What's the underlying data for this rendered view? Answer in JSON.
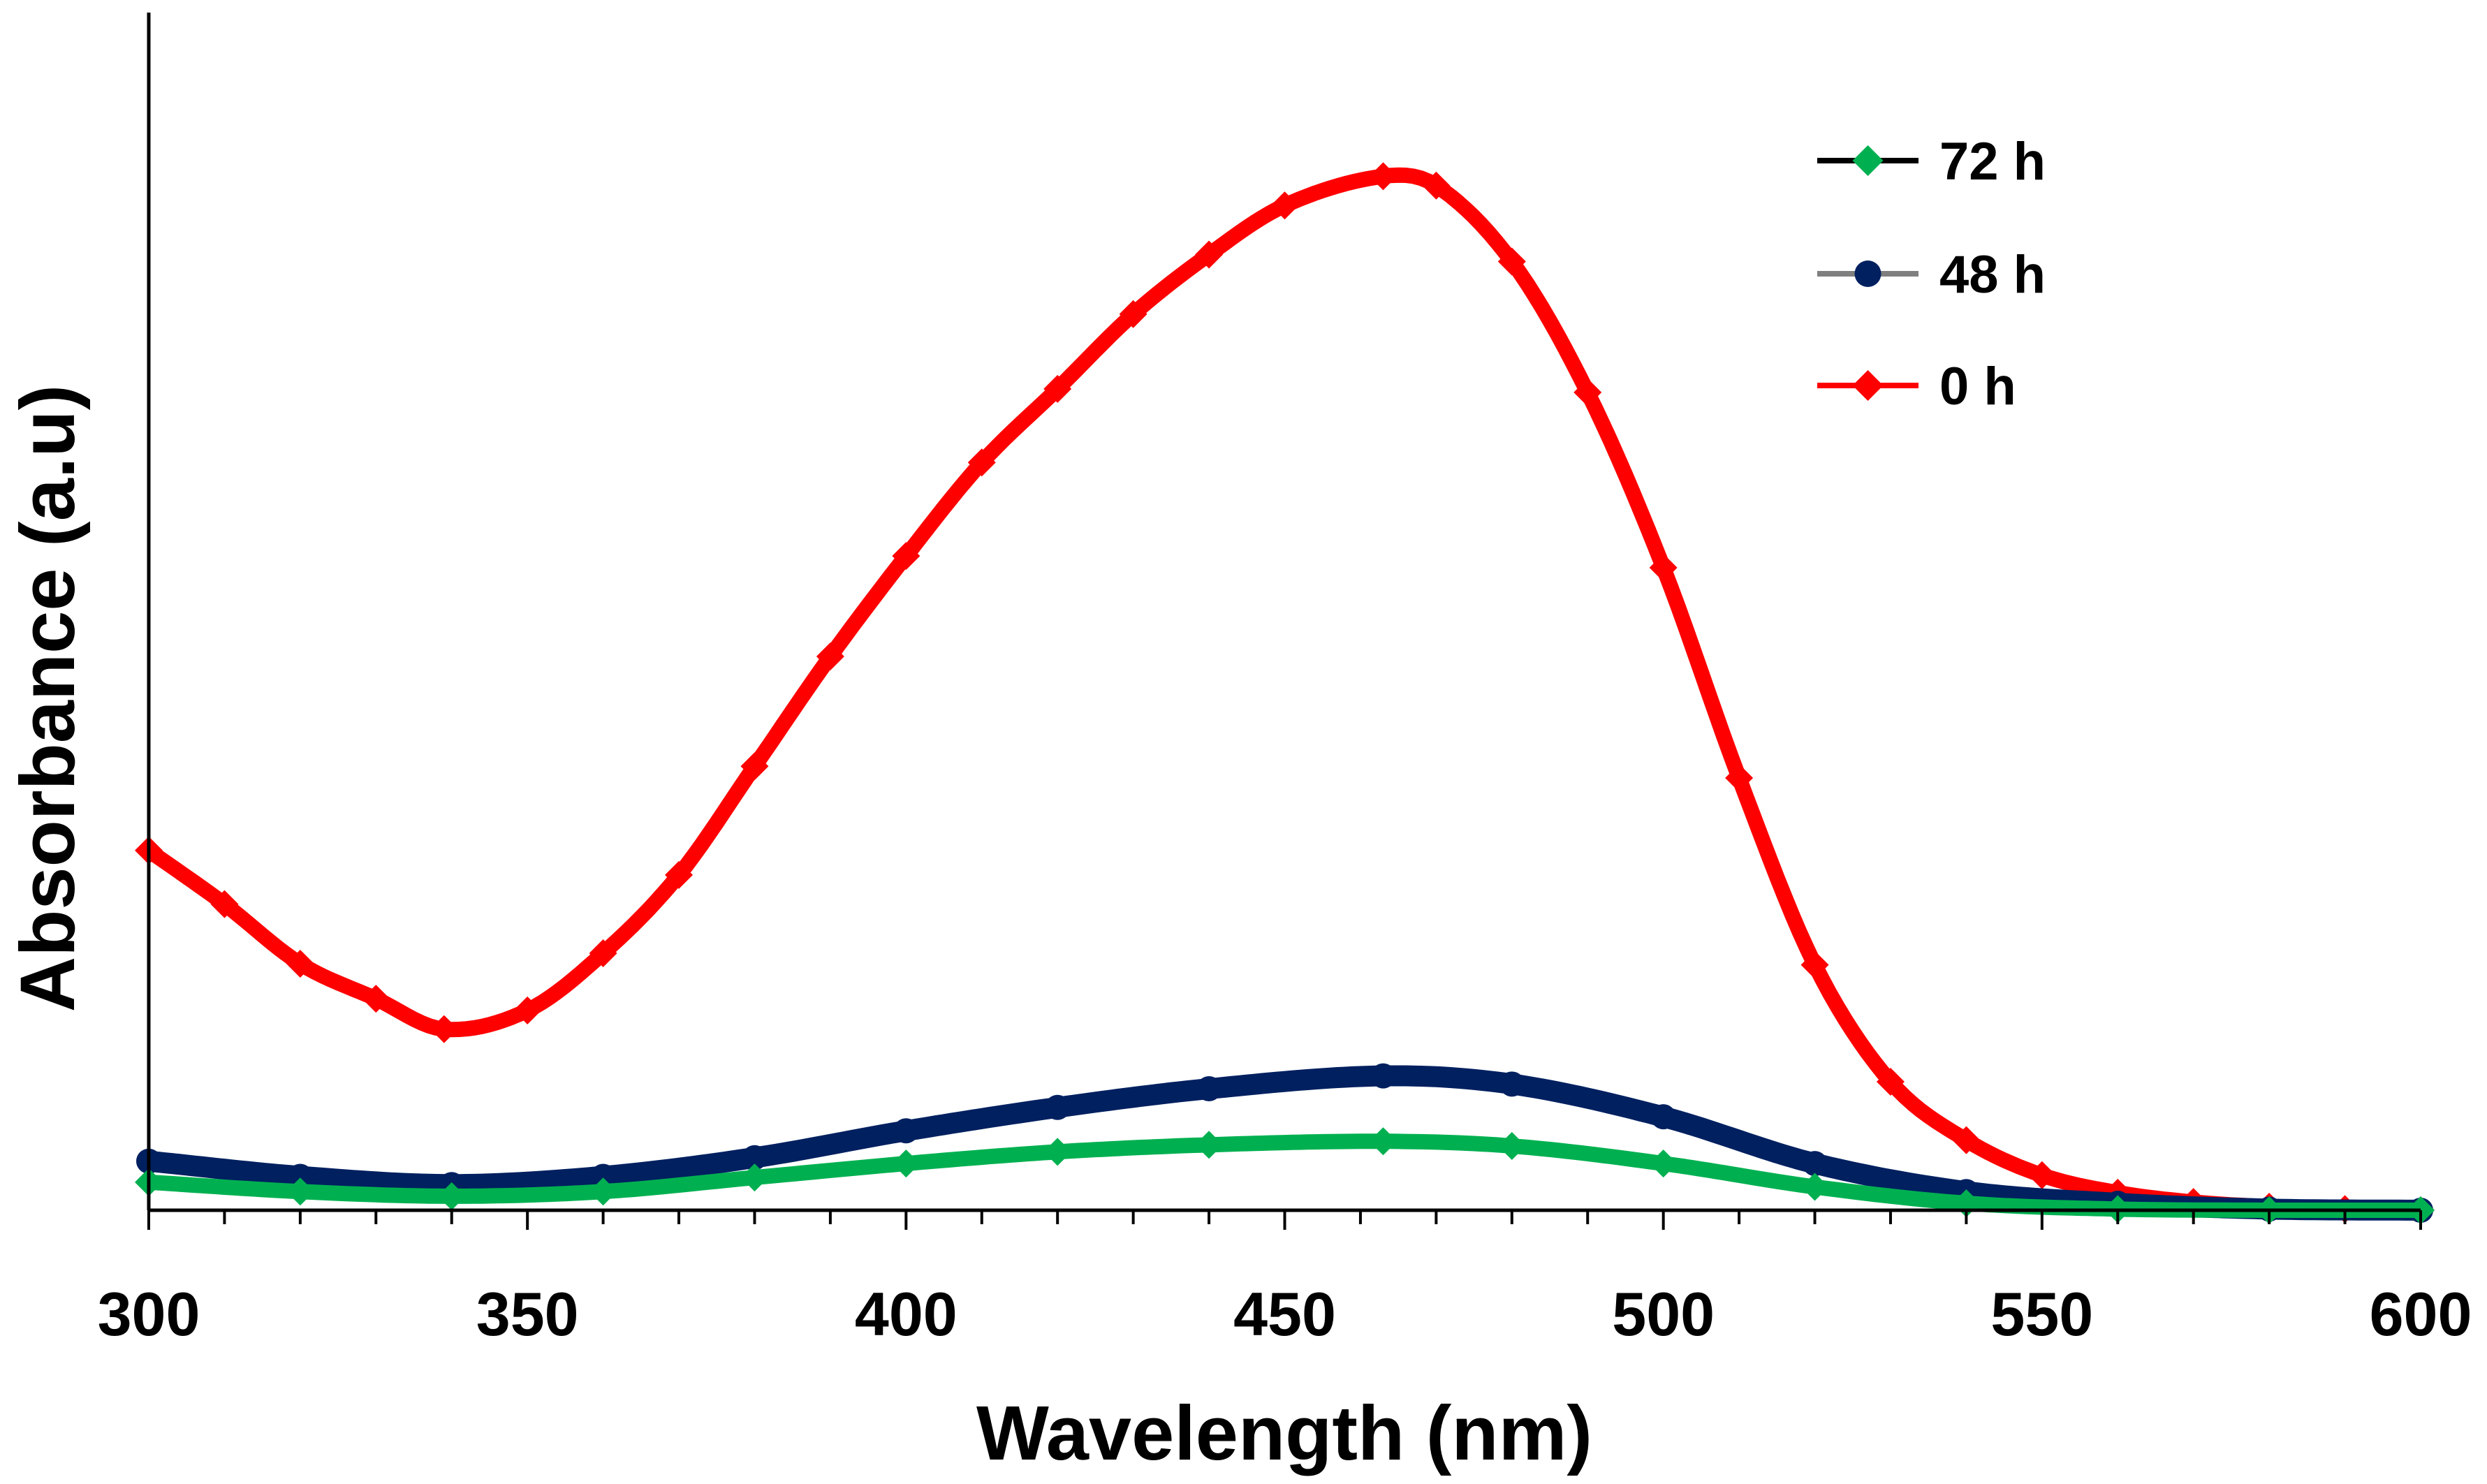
{
  "chart_data": {
    "type": "line",
    "title": "",
    "xlabel": "Wavelength (nm)",
    "ylabel": "Absorbance (a.u)",
    "xlim": [
      300,
      600
    ],
    "ylim": [
      0,
      1.0
    ],
    "xticks": [
      "300",
      "350",
      "400",
      "450",
      "500",
      "550",
      "600"
    ],
    "xtick_values": [
      300,
      350,
      400,
      450,
      500,
      550,
      600
    ],
    "minor_tick_step": 10,
    "grid": false,
    "legend_position": "top-right",
    "series": [
      {
        "name": "72 h",
        "color": "#00b050",
        "line_color": "#000000",
        "marker": "diamond",
        "x": [
          300,
          320,
          340,
          360,
          380,
          400,
          420,
          440,
          463,
          480,
          500,
          520,
          540,
          560,
          580,
          600
        ],
        "values": [
          0.024,
          0.016,
          0.012,
          0.016,
          0.028,
          0.04,
          0.05,
          0.056,
          0.059,
          0.055,
          0.04,
          0.02,
          0.006,
          0.001,
          0.0,
          0.0
        ]
      },
      {
        "name": "48 h",
        "color": "#002060",
        "line_color": "#7f7f7f",
        "marker": "circle",
        "x": [
          300,
          320,
          340,
          360,
          380,
          400,
          420,
          440,
          463,
          480,
          500,
          520,
          540,
          560,
          580,
          600
        ],
        "values": [
          0.042,
          0.029,
          0.022,
          0.029,
          0.045,
          0.068,
          0.088,
          0.104,
          0.115,
          0.108,
          0.08,
          0.04,
          0.016,
          0.006,
          0.001,
          0.0
        ]
      },
      {
        "name": "0 h",
        "color": "#ff0000",
        "line_color": "#ff0000",
        "marker": "diamond",
        "x": [
          300,
          310,
          320,
          330,
          339,
          350,
          360,
          370,
          380,
          390,
          400,
          410,
          420,
          430,
          440,
          450,
          463,
          470,
          480,
          490,
          500,
          510,
          520,
          530,
          540,
          550,
          560,
          570,
          580,
          590,
          600
        ],
        "values": [
          0.308,
          0.262,
          0.211,
          0.181,
          0.155,
          0.171,
          0.22,
          0.287,
          0.38,
          0.474,
          0.56,
          0.64,
          0.703,
          0.767,
          0.818,
          0.86,
          0.885,
          0.877,
          0.812,
          0.7,
          0.55,
          0.37,
          0.21,
          0.11,
          0.06,
          0.03,
          0.015,
          0.007,
          0.003,
          0.001,
          0.0
        ]
      }
    ]
  }
}
